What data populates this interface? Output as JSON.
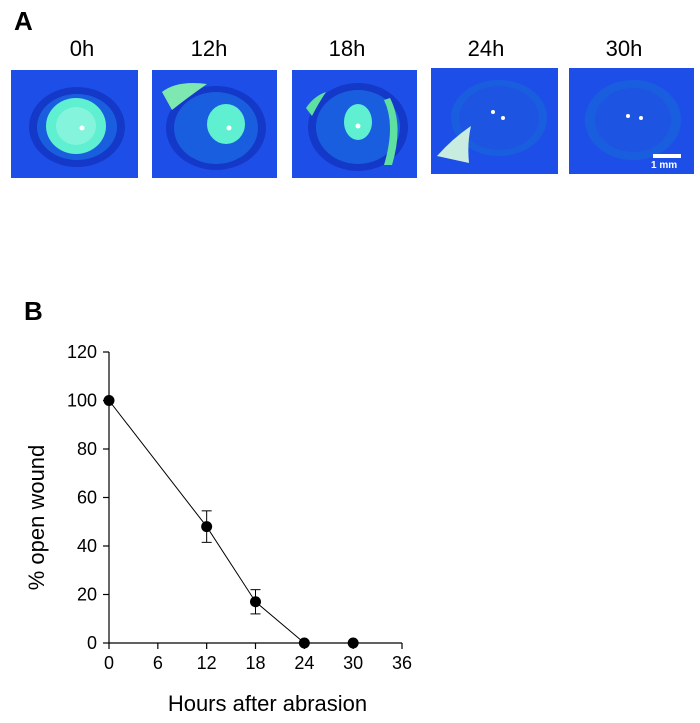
{
  "panel_a": {
    "letter": "A",
    "timepoints": [
      "0h",
      "12h",
      "18h",
      "24h",
      "30h"
    ],
    "scale_bar_label": "1 mm",
    "image_colors": {
      "background": "#1e4ee6",
      "stain": "#5ef0d0",
      "pupil_glint": "#ffffff"
    }
  },
  "panel_b": {
    "letter": "B"
  },
  "chart_data": {
    "type": "line",
    "xlabel": "Hours after abrasion",
    "ylabel": "% open wound",
    "xlim": [
      0,
      36
    ],
    "ylim": [
      0,
      120
    ],
    "xticks": [
      0,
      6,
      12,
      18,
      24,
      30,
      36
    ],
    "yticks": [
      0,
      20,
      40,
      60,
      80,
      100,
      120
    ],
    "grid": false,
    "series": [
      {
        "x": [
          0,
          12,
          18,
          24,
          30
        ],
        "y": [
          100,
          48,
          17,
          0,
          0
        ],
        "error": [
          0,
          6.5,
          5,
          0,
          0
        ],
        "color": "#000000"
      }
    ]
  }
}
